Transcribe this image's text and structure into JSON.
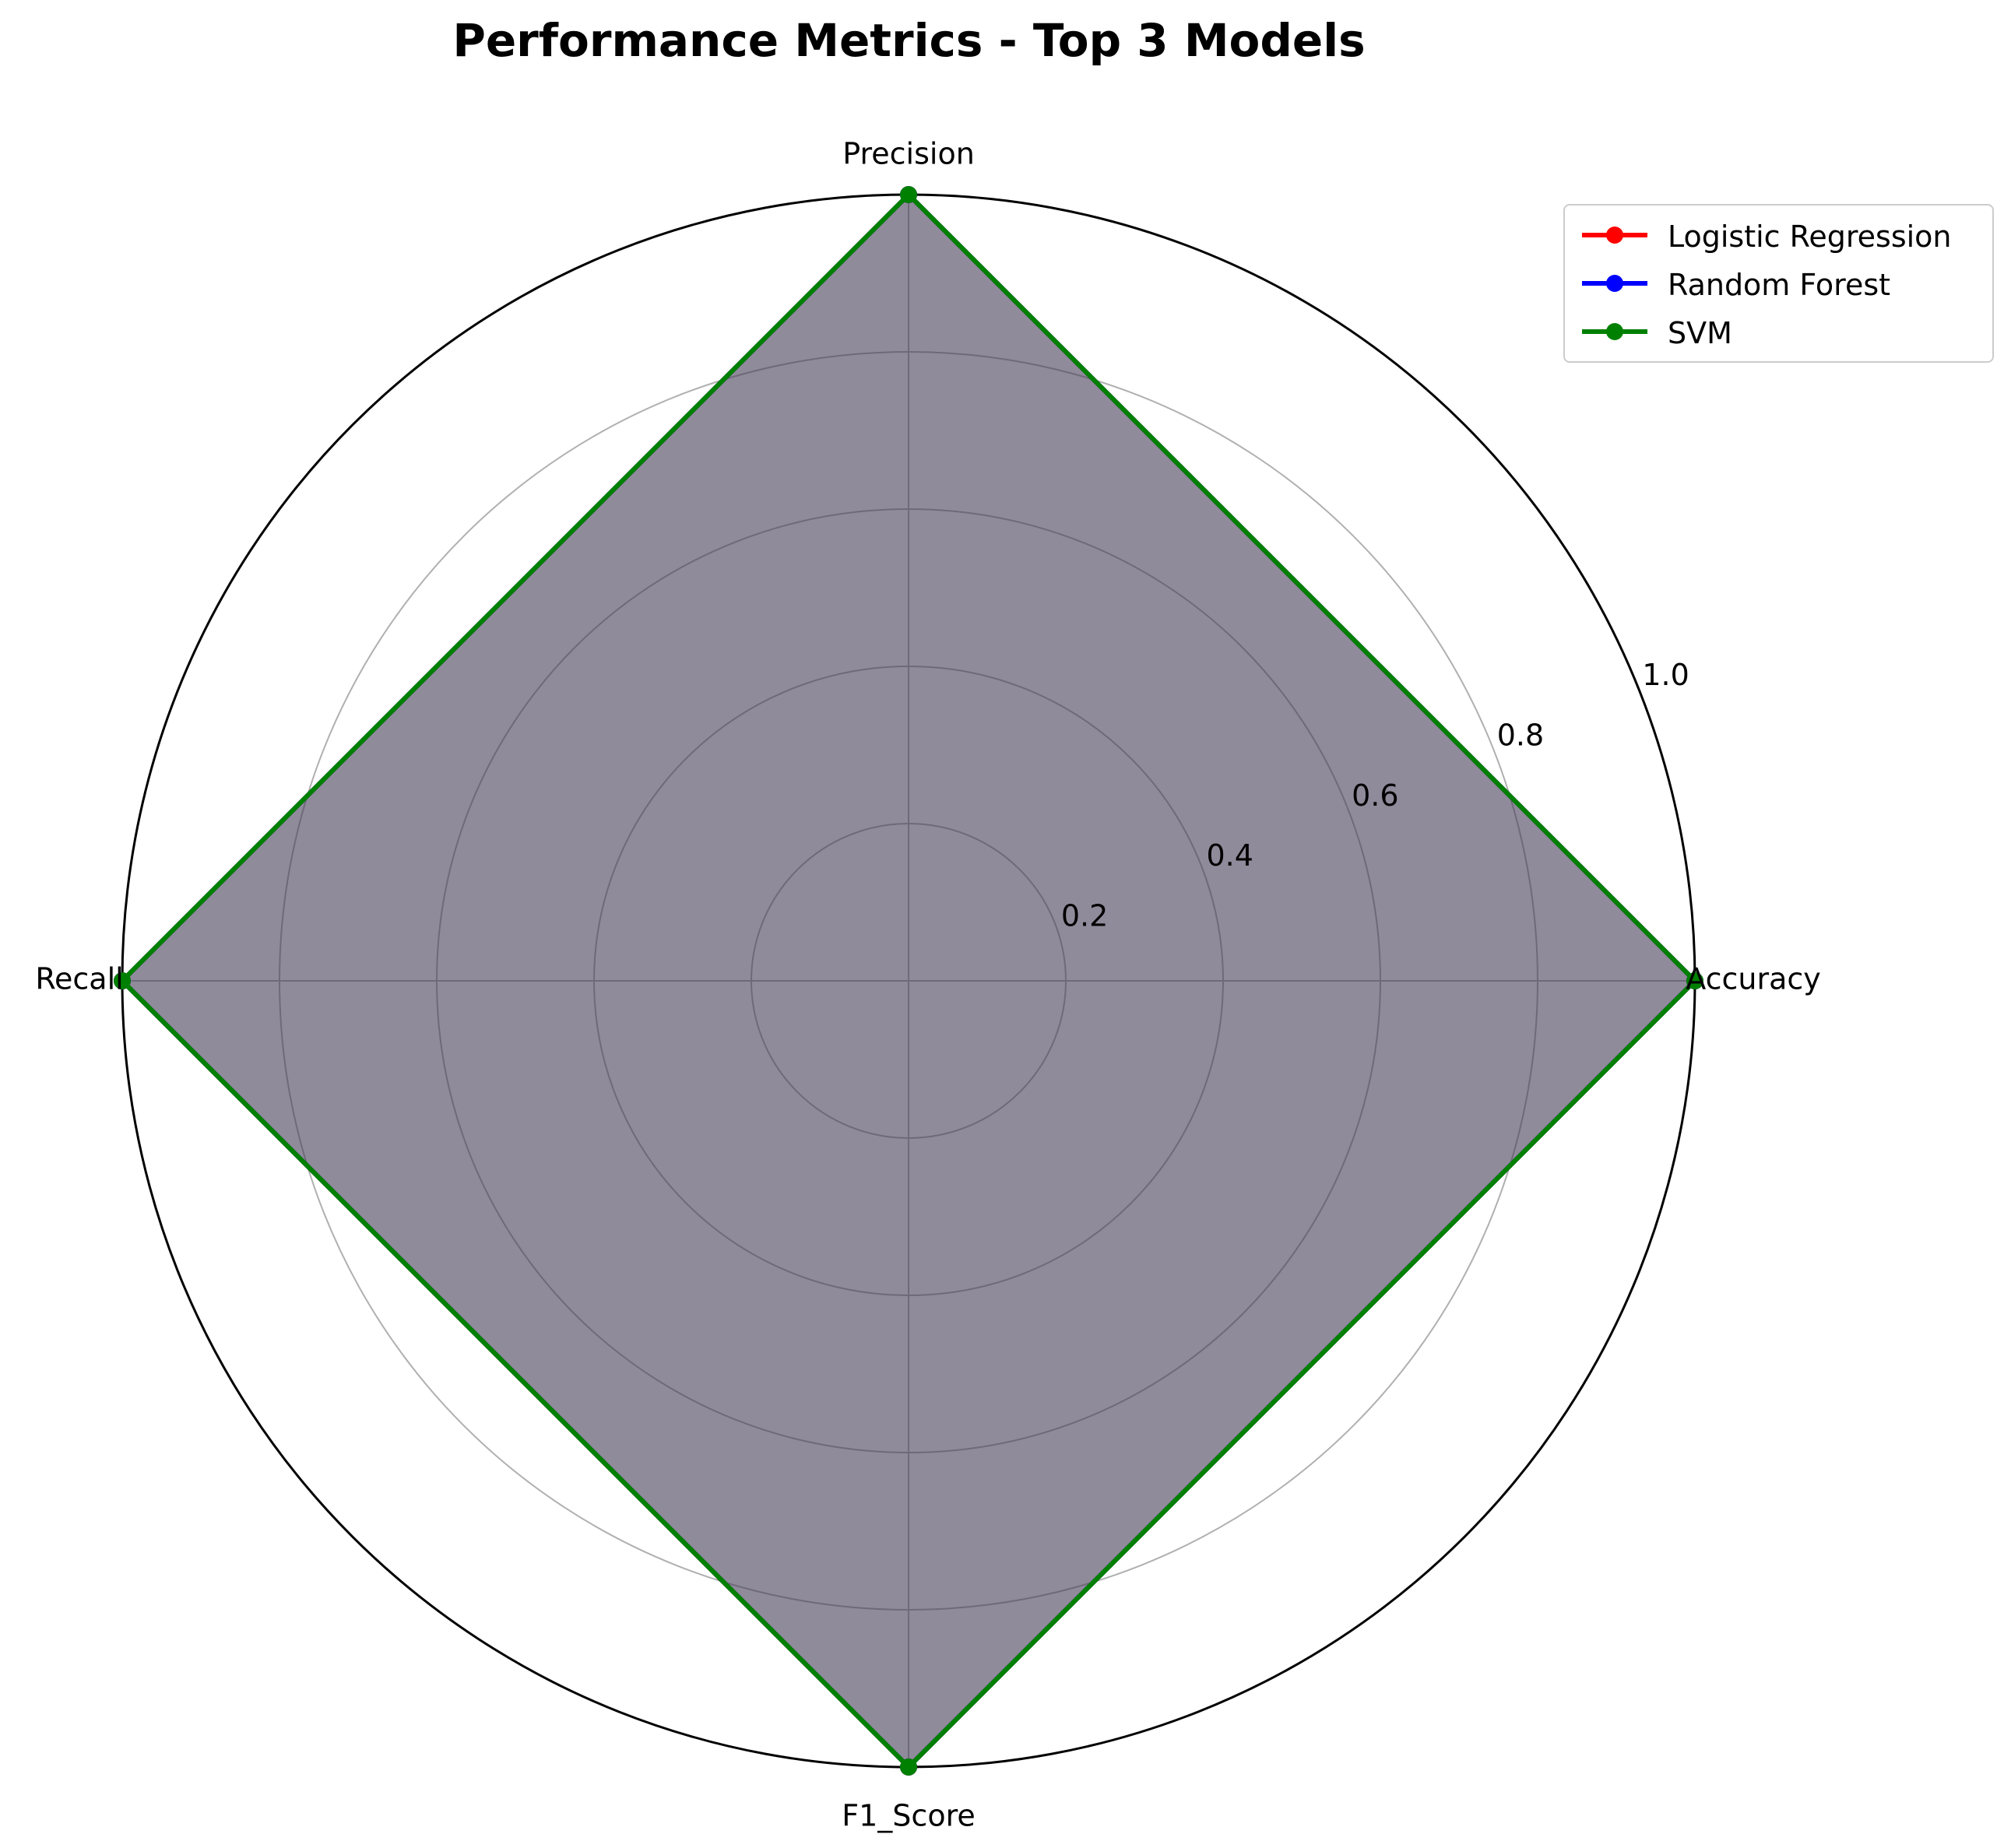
{
  "chart_data": {
    "type": "radar",
    "title": "Performance Metrics - Top 3 Models",
    "categories": [
      "Accuracy",
      "Precision",
      "Recall",
      "F1_Score"
    ],
    "radial_ticks": [
      "0.2",
      "0.4",
      "0.6",
      "0.8",
      "1.0"
    ],
    "rlim": [
      0,
      1.0
    ],
    "grid": true,
    "legend_position": "top-right",
    "series": [
      {
        "name": "Logistic Regression",
        "color": "#ff0000",
        "values": [
          1.0,
          1.0,
          1.0,
          1.0
        ]
      },
      {
        "name": "Random Forest",
        "color": "#0000ff",
        "values": [
          1.0,
          1.0,
          1.0,
          1.0
        ]
      },
      {
        "name": "SVM",
        "color": "#008000",
        "values": [
          1.0,
          1.0,
          1.0,
          1.0
        ]
      }
    ]
  }
}
